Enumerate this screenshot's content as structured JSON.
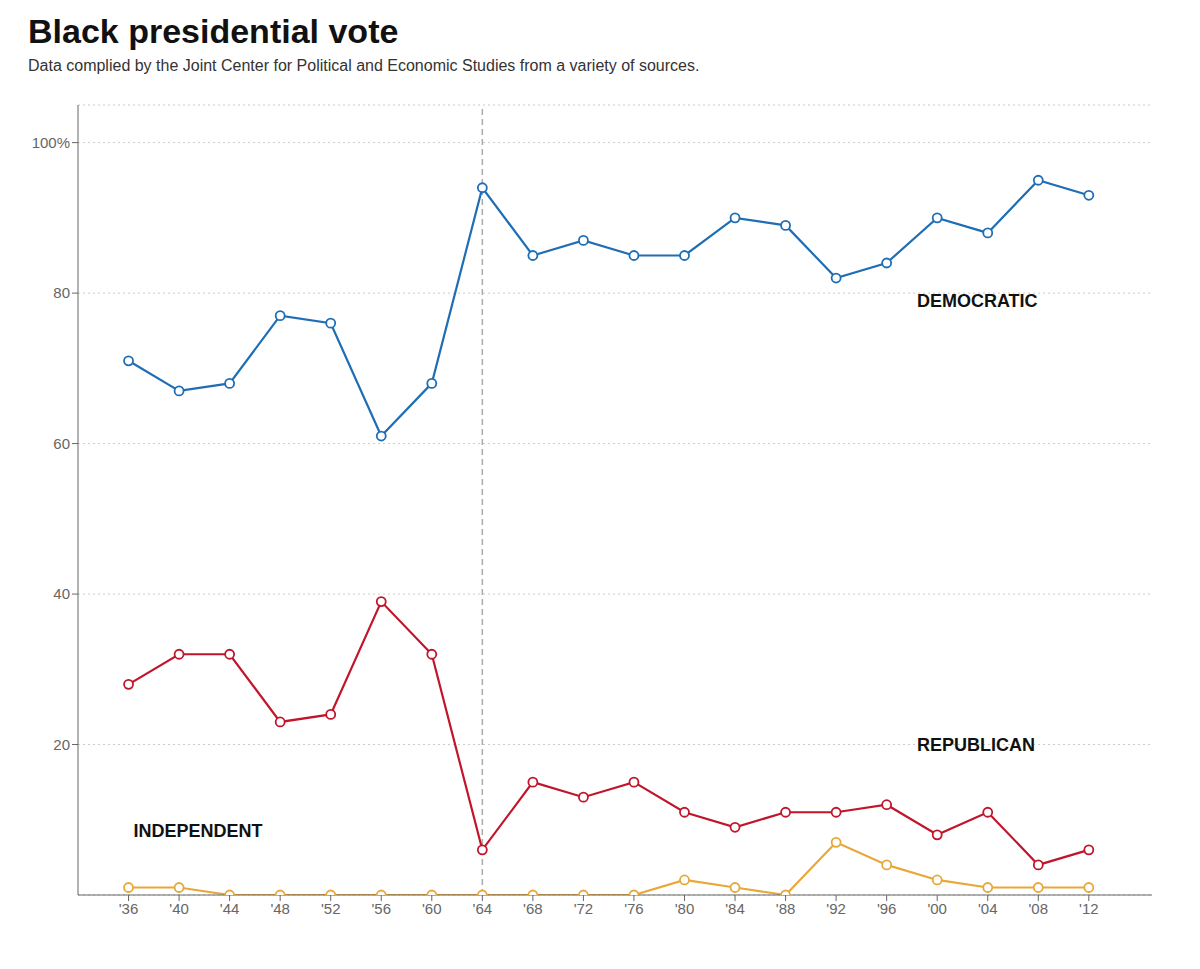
{
  "chart_data": {
    "type": "line",
    "title": "Black presidential vote",
    "subtitle": "Data complied by the Joint Center for Political and Economic Studies from a variety of sources.",
    "x": [
      1936,
      1940,
      1944,
      1948,
      1952,
      1956,
      1960,
      1964,
      1968,
      1972,
      1976,
      1980,
      1984,
      1988,
      1992,
      1996,
      2000,
      2004,
      2008,
      2012
    ],
    "series": [
      {
        "name": "DEMOCRATIC",
        "color": "#1f6eb5",
        "marker": "circle",
        "line_style": "solid",
        "values": [
          71,
          67,
          68,
          77,
          76,
          61,
          68,
          94,
          85,
          87,
          85,
          85,
          90,
          89,
          82,
          84,
          90,
          88,
          95,
          93
        ]
      },
      {
        "name": "REPUBLICAN",
        "color": "#c0152b",
        "marker": "circle",
        "line_style": "solid",
        "values": [
          28,
          32,
          32,
          23,
          24,
          39,
          32,
          6,
          15,
          13,
          15,
          11,
          9,
          11,
          11,
          12,
          8,
          11,
          4,
          6
        ]
      },
      {
        "name": "INDEPENDENT",
        "color": "#e8a838",
        "marker": "circle",
        "line_style": "solid",
        "values": [
          1,
          1,
          0,
          0,
          0,
          0,
          0,
          0,
          0,
          0,
          0,
          2,
          1,
          0,
          7,
          4,
          2,
          1,
          1,
          1
        ]
      }
    ],
    "annotations": [
      {
        "text": "DEMOCRATIC",
        "x": 1998,
        "y": 79
      },
      {
        "text": "REPUBLICAN",
        "x": 1998,
        "y": 20
      },
      {
        "text": "INDEPENDENT",
        "x": 1936,
        "y": 8.5
      }
    ],
    "vline_x": 1964,
    "xlim": [
      1932,
      2017
    ],
    "xticks": [
      {
        "value": 1936,
        "label": "'36"
      },
      {
        "value": 1940,
        "label": "'40"
      },
      {
        "value": 1944,
        "label": "'44"
      },
      {
        "value": 1948,
        "label": "'48"
      },
      {
        "value": 1952,
        "label": "'52"
      },
      {
        "value": 1956,
        "label": "'56"
      },
      {
        "value": 1960,
        "label": "'60"
      },
      {
        "value": 1964,
        "label": "'64"
      },
      {
        "value": 1968,
        "label": "'68"
      },
      {
        "value": 1972,
        "label": "'72"
      },
      {
        "value": 1976,
        "label": "'76"
      },
      {
        "value": 1980,
        "label": "'80"
      },
      {
        "value": 1984,
        "label": "'84"
      },
      {
        "value": 1988,
        "label": "'88"
      },
      {
        "value": 1992,
        "label": "'92"
      },
      {
        "value": 1996,
        "label": "'96"
      },
      {
        "value": 2000,
        "label": "'00"
      },
      {
        "value": 2004,
        "label": "'04"
      },
      {
        "value": 2008,
        "label": "'08"
      },
      {
        "value": 2012,
        "label": "'12"
      }
    ],
    "ylim": [
      0,
      105
    ],
    "yticks": [
      20,
      40,
      60,
      80,
      {
        "value": 100,
        "label": "100%"
      }
    ],
    "grid": true
  }
}
